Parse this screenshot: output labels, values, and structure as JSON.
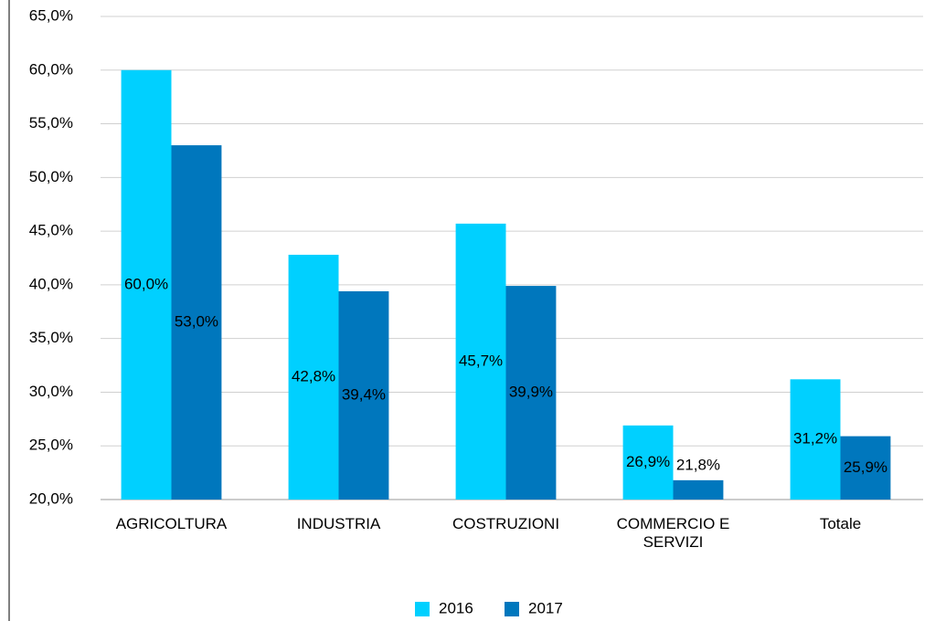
{
  "chart_data": {
    "type": "bar",
    "categories": [
      "AGRICOLTURA",
      "INDUSTRIA",
      "COSTRUZIONI",
      "COMMERCIO E SERVIZI",
      "Totale"
    ],
    "series": [
      {
        "name": "2016",
        "color": "#00d0ff",
        "values": [
          60.0,
          42.8,
          45.7,
          26.9,
          31.2
        ],
        "value_labels": [
          "60,0%",
          "42,8%",
          "45,7%",
          "26,9%",
          "31,2%"
        ]
      },
      {
        "name": "2017",
        "color": "#0077bd",
        "values": [
          53.0,
          39.4,
          39.9,
          21.8,
          25.9
        ],
        "value_labels": [
          "53,0%",
          "39,4%",
          "39,9%",
          "21,8%",
          "25,9%"
        ]
      }
    ],
    "ylim": [
      20,
      65
    ],
    "yticks": [
      {
        "value": 20,
        "label": "20,0%"
      },
      {
        "value": 25,
        "label": "25,0%"
      },
      {
        "value": 30,
        "label": "30,0%"
      },
      {
        "value": 35,
        "label": "35,0%"
      },
      {
        "value": 40,
        "label": "40,0%"
      },
      {
        "value": 45,
        "label": "45,0%"
      },
      {
        "value": 50,
        "label": "50,0%"
      },
      {
        "value": 55,
        "label": "55,0%"
      },
      {
        "value": 60,
        "label": "60,0%"
      },
      {
        "value": 65,
        "label": "65,0%"
      }
    ],
    "grid": true,
    "legend": "bottom"
  }
}
